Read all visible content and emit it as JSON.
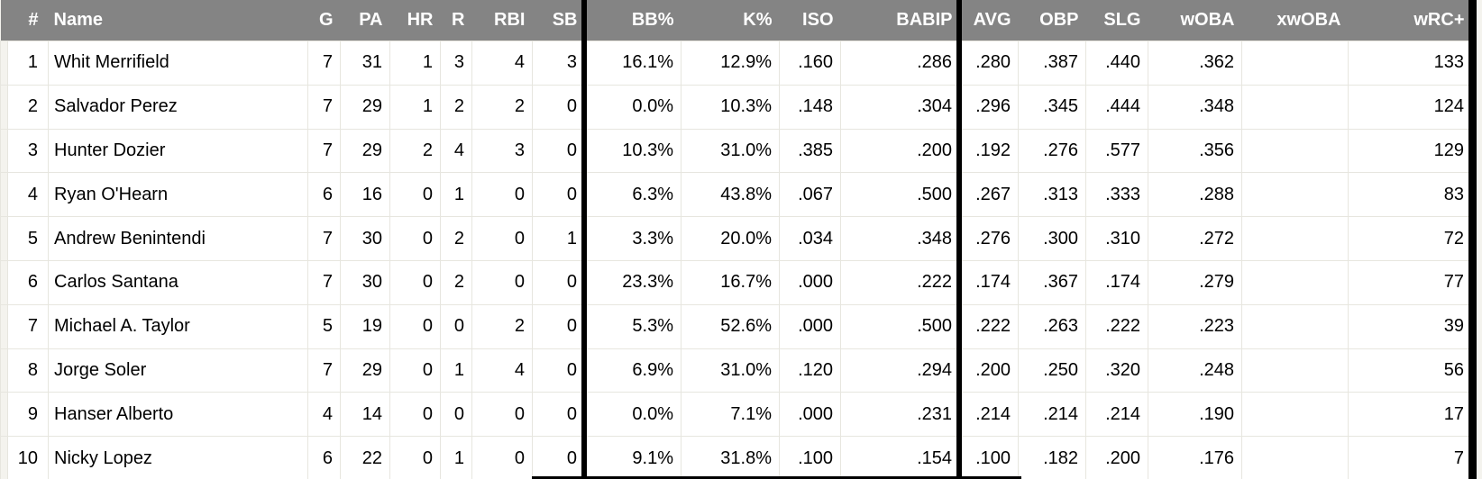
{
  "colors": {
    "header_bg": "#848484",
    "header_text": "#ffffff",
    "grid_line": "#e7e6df",
    "cell_bg": "#ffffff",
    "empty_cell_bg": "#f4f3ee",
    "group_border": "#000000",
    "body_text": "#000000"
  },
  "table": {
    "columns": [
      {
        "key": "num",
        "label": "#"
      },
      {
        "key": "name",
        "label": "Name"
      },
      {
        "key": "g",
        "label": "G"
      },
      {
        "key": "pa",
        "label": "PA"
      },
      {
        "key": "hr",
        "label": "HR"
      },
      {
        "key": "r",
        "label": "R"
      },
      {
        "key": "rbi",
        "label": "RBI"
      },
      {
        "key": "sb",
        "label": "SB"
      },
      {
        "key": "bb_pct",
        "label": "BB%"
      },
      {
        "key": "k_pct",
        "label": "K%"
      },
      {
        "key": "iso",
        "label": "ISO"
      },
      {
        "key": "babip",
        "label": "BABIP"
      },
      {
        "key": "avg",
        "label": "AVG"
      },
      {
        "key": "obp",
        "label": "OBP"
      },
      {
        "key": "slg",
        "label": "SLG"
      },
      {
        "key": "woba",
        "label": "wOBA"
      },
      {
        "key": "xwoba",
        "label": "xwOBA"
      },
      {
        "key": "wrc_plus",
        "label": "wRC+"
      }
    ],
    "rows": [
      {
        "num": "1",
        "name": "Whit Merrifield",
        "g": "7",
        "pa": "31",
        "hr": "1",
        "r": "3",
        "rbi": "4",
        "sb": "3",
        "bb_pct": "16.1%",
        "k_pct": "12.9%",
        "iso": ".160",
        "babip": ".286",
        "avg": ".280",
        "obp": ".387",
        "slg": ".440",
        "woba": ".362",
        "xwoba": "",
        "wrc_plus": "133"
      },
      {
        "num": "2",
        "name": "Salvador Perez",
        "g": "7",
        "pa": "29",
        "hr": "1",
        "r": "2",
        "rbi": "2",
        "sb": "0",
        "bb_pct": "0.0%",
        "k_pct": "10.3%",
        "iso": ".148",
        "babip": ".304",
        "avg": ".296",
        "obp": ".345",
        "slg": ".444",
        "woba": ".348",
        "xwoba": "",
        "wrc_plus": "124"
      },
      {
        "num": "3",
        "name": "Hunter Dozier",
        "g": "7",
        "pa": "29",
        "hr": "2",
        "r": "4",
        "rbi": "3",
        "sb": "0",
        "bb_pct": "10.3%",
        "k_pct": "31.0%",
        "iso": ".385",
        "babip": ".200",
        "avg": ".192",
        "obp": ".276",
        "slg": ".577",
        "woba": ".356",
        "xwoba": "",
        "wrc_plus": "129"
      },
      {
        "num": "4",
        "name": "Ryan O'Hearn",
        "g": "6",
        "pa": "16",
        "hr": "0",
        "r": "1",
        "rbi": "0",
        "sb": "0",
        "bb_pct": "6.3%",
        "k_pct": "43.8%",
        "iso": ".067",
        "babip": ".500",
        "avg": ".267",
        "obp": ".313",
        "slg": ".333",
        "woba": ".288",
        "xwoba": "",
        "wrc_plus": "83"
      },
      {
        "num": "5",
        "name": "Andrew Benintendi",
        "g": "7",
        "pa": "30",
        "hr": "0",
        "r": "2",
        "rbi": "0",
        "sb": "1",
        "bb_pct": "3.3%",
        "k_pct": "20.0%",
        "iso": ".034",
        "babip": ".348",
        "avg": ".276",
        "obp": ".300",
        "slg": ".310",
        "woba": ".272",
        "xwoba": "",
        "wrc_plus": "72"
      },
      {
        "num": "6",
        "name": "Carlos Santana",
        "g": "7",
        "pa": "30",
        "hr": "0",
        "r": "2",
        "rbi": "0",
        "sb": "0",
        "bb_pct": "23.3%",
        "k_pct": "16.7%",
        "iso": ".000",
        "babip": ".222",
        "avg": ".174",
        "obp": ".367",
        "slg": ".174",
        "woba": ".279",
        "xwoba": "",
        "wrc_plus": "77"
      },
      {
        "num": "7",
        "name": "Michael A. Taylor",
        "g": "5",
        "pa": "19",
        "hr": "0",
        "r": "0",
        "rbi": "2",
        "sb": "0",
        "bb_pct": "5.3%",
        "k_pct": "52.6%",
        "iso": ".000",
        "babip": ".500",
        "avg": ".222",
        "obp": ".263",
        "slg": ".222",
        "woba": ".223",
        "xwoba": "",
        "wrc_plus": "39"
      },
      {
        "num": "8",
        "name": "Jorge Soler",
        "g": "7",
        "pa": "29",
        "hr": "0",
        "r": "1",
        "rbi": "4",
        "sb": "0",
        "bb_pct": "6.9%",
        "k_pct": "31.0%",
        "iso": ".120",
        "babip": ".294",
        "avg": ".200",
        "obp": ".250",
        "slg": ".320",
        "woba": ".248",
        "xwoba": "",
        "wrc_plus": "56"
      },
      {
        "num": "9",
        "name": "Hanser Alberto",
        "g": "4",
        "pa": "14",
        "hr": "0",
        "r": "0",
        "rbi": "0",
        "sb": "0",
        "bb_pct": "0.0%",
        "k_pct": "7.1%",
        "iso": ".000",
        "babip": ".231",
        "avg": ".214",
        "obp": ".214",
        "slg": ".214",
        "woba": ".190",
        "xwoba": "",
        "wrc_plus": "17"
      },
      {
        "num": "10",
        "name": "Nicky Lopez",
        "g": "6",
        "pa": "22",
        "hr": "0",
        "r": "1",
        "rbi": "0",
        "sb": "0",
        "bb_pct": "9.1%",
        "k_pct": "31.8%",
        "iso": ".100",
        "babip": ".154",
        "avg": ".100",
        "obp": ".182",
        "slg": ".200",
        "woba": ".176",
        "xwoba": "",
        "wrc_plus": "7"
      }
    ]
  }
}
